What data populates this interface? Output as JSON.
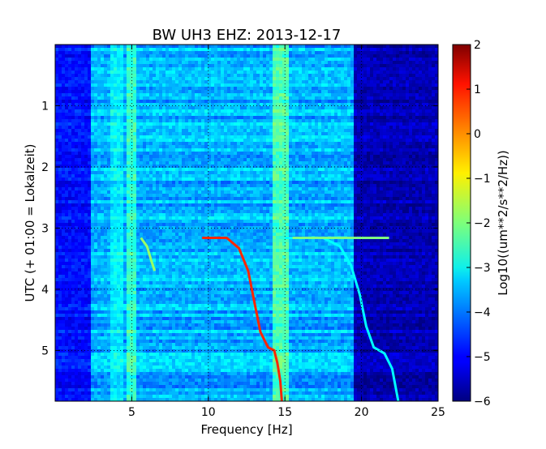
{
  "chart_data": {
    "type": "heatmap",
    "title": "BW UH3 EHZ: 2013-12-17",
    "xlabel": "Frequency [Hz]",
    "ylabel": "UTC (+ 01:00 = Lokalzeit)",
    "xlim": [
      0,
      25
    ],
    "ylim": [
      5.83,
      0
    ],
    "x_ticks": [
      5,
      10,
      15,
      20,
      25
    ],
    "y_ticks": [
      1,
      2,
      3,
      4,
      5
    ],
    "grid": true,
    "colormap": "jet",
    "colorbar": {
      "label": "Log10((um**2/s**2/Hz))",
      "min": -6,
      "max": 2,
      "ticks": [
        2,
        1,
        0,
        -1,
        -2,
        -3,
        -4,
        -5,
        -6
      ]
    },
    "background_level": -3.6,
    "features": [
      {
        "name": "low-frequency dark band",
        "x_range": [
          0,
          2.3
        ],
        "level": -4.9
      },
      {
        "name": "high-frequency dark region",
        "x_range": [
          19.5,
          25
        ],
        "level": -5.6
      },
      {
        "name": "band near 4 Hz",
        "x_range": [
          3.6,
          4.4
        ],
        "level": -3.1
      },
      {
        "name": "band near 5 Hz",
        "x_range": [
          4.6,
          5.3
        ],
        "level": -2.6
      },
      {
        "name": "band near 14.8 Hz",
        "x_range": [
          14.3,
          15.3
        ],
        "level": -2.4
      },
      {
        "name": "strong dot at t=4",
        "x_range": [
          0,
          1.3
        ],
        "y": 4.0,
        "level": -5.0
      }
    ],
    "series": [
      {
        "name": "gliding tone A",
        "level": 0.7,
        "points": [
          [
            9.6,
            3.16
          ],
          [
            11.2,
            3.16
          ],
          [
            12.0,
            3.33
          ],
          [
            12.6,
            3.7
          ],
          [
            13.0,
            4.2
          ],
          [
            13.4,
            4.7
          ],
          [
            13.9,
            4.95
          ],
          [
            14.3,
            5.0
          ],
          [
            14.5,
            5.2
          ],
          [
            14.7,
            5.5
          ],
          [
            14.8,
            5.83
          ]
        ]
      },
      {
        "name": "gliding tone B",
        "level": -3.0,
        "points": [
          [
            15.0,
            3.16
          ],
          [
            17.5,
            3.16
          ],
          [
            18.6,
            3.3
          ],
          [
            19.3,
            3.6
          ],
          [
            19.9,
            4.1
          ],
          [
            20.3,
            4.6
          ],
          [
            20.8,
            4.95
          ],
          [
            21.5,
            5.05
          ],
          [
            22.0,
            5.3
          ],
          [
            22.4,
            5.83
          ]
        ]
      },
      {
        "name": "gliding tone C",
        "level": -1.8,
        "points": [
          [
            5.6,
            3.16
          ],
          [
            6.0,
            3.3
          ],
          [
            6.3,
            3.55
          ],
          [
            6.5,
            3.7
          ]
        ]
      },
      {
        "name": "horizontal line at t=3.16",
        "level": -2.0,
        "points": [
          [
            15.5,
            3.16
          ],
          [
            21.8,
            3.16
          ]
        ]
      }
    ]
  }
}
